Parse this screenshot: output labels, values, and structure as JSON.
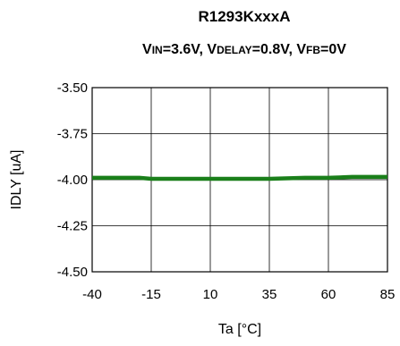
{
  "chart_data": {
    "type": "line",
    "title": "R1293KxxxA",
    "subtitle_parts": [
      {
        "main": "V",
        "sub": "IN",
        "tail": "=3.6V, "
      },
      {
        "main": "V",
        "sub": "DELAY",
        "tail": "=0.8V, "
      },
      {
        "main": "V",
        "sub": "FB",
        "tail": "=0V"
      }
    ],
    "xlabel": "Ta [°C]",
    "ylabel": "IDLY [uA]",
    "xlim": [
      -40,
      85
    ],
    "ylim": [
      -4.5,
      -3.5
    ],
    "xticks": [
      -40,
      -15,
      10,
      35,
      60,
      85
    ],
    "xtick_labels": [
      "-40",
      "-15",
      "10",
      "35",
      "60",
      "85"
    ],
    "yticks": [
      -3.5,
      -3.75,
      -4.0,
      -4.25,
      -4.5
    ],
    "ytick_labels": [
      "-3.50",
      "-3.75",
      "-4.00",
      "-4.25",
      "-4.50"
    ],
    "grid": true,
    "series": [
      {
        "color": "#1a7f1a",
        "x": [
          -40,
          -30,
          -20,
          -15,
          0,
          10,
          20,
          35,
          50,
          60,
          70,
          85
        ],
        "y": [
          -3.99,
          -3.99,
          -3.99,
          -3.995,
          -3.995,
          -3.995,
          -3.995,
          -3.995,
          -3.99,
          -3.99,
          -3.985,
          -3.985
        ]
      }
    ]
  }
}
